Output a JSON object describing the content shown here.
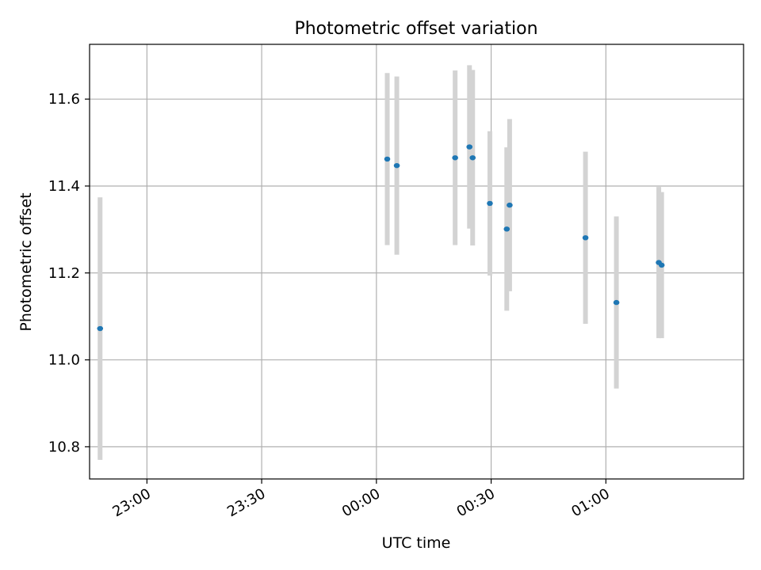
{
  "chart_data": {
    "type": "scatter",
    "title": "Photometric offset variation",
    "xlabel": "UTC time",
    "ylabel": "Photometric offset",
    "x_ticks": [
      "23:00",
      "23:30",
      "00:00",
      "00:30",
      "01:00"
    ],
    "y_ticks": [
      "10.8",
      "11.0",
      "11.2",
      "11.4",
      "11.6"
    ],
    "xlim": [
      "22:45",
      "01:36"
    ],
    "ylim": [
      10.726,
      11.726
    ],
    "grid": true,
    "errorbar_color": "#d3d3d3",
    "point_color": "#1f77b4",
    "points": [
      {
        "x": "22:47:45",
        "y": 11.072,
        "err": 0.302
      },
      {
        "x": "00:02:50",
        "y": 11.462,
        "err": 0.198
      },
      {
        "x": "00:05:20",
        "y": 11.447,
        "err": 0.205
      },
      {
        "x": "00:20:35",
        "y": 11.465,
        "err": 0.201
      },
      {
        "x": "00:24:20",
        "y": 11.49,
        "err": 0.188
      },
      {
        "x": "00:25:10",
        "y": 11.465,
        "err": 0.202
      },
      {
        "x": "00:29:40",
        "y": 11.36,
        "err": 0.166
      },
      {
        "x": "00:34:05",
        "y": 11.301,
        "err": 0.188
      },
      {
        "x": "00:34:50",
        "y": 11.356,
        "err": 0.198
      },
      {
        "x": "00:54:40",
        "y": 11.281,
        "err": 0.198
      },
      {
        "x": "01:02:45",
        "y": 11.132,
        "err": 0.198
      },
      {
        "x": "01:13:50",
        "y": 11.224,
        "err": 0.174
      },
      {
        "x": "01:14:35",
        "y": 11.218,
        "err": 0.168
      }
    ]
  }
}
